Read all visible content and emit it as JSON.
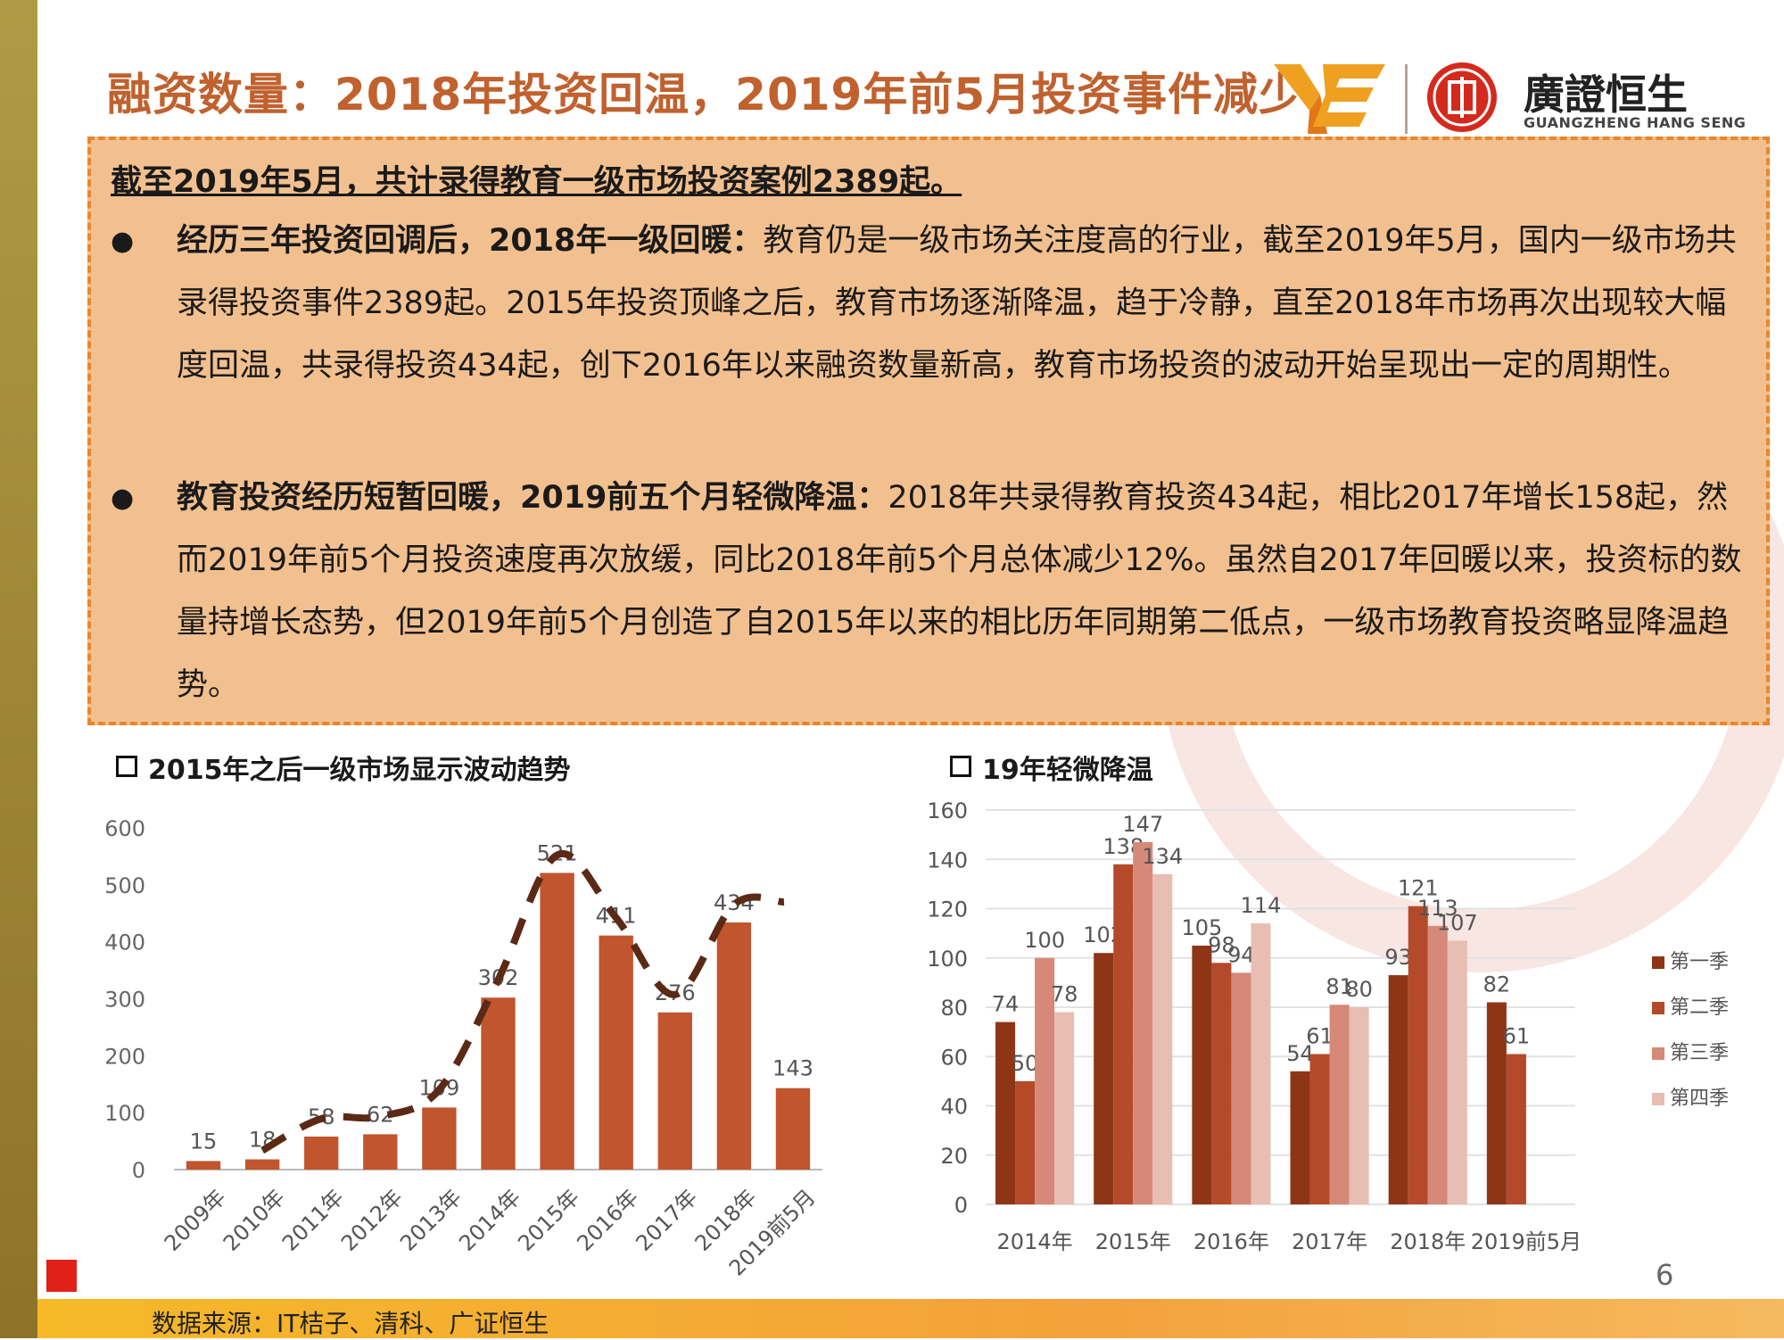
{
  "title": "融资数量：2018年投资回温，2019年前5月投资事件减少",
  "logo": {
    "cn": "廣證恒生",
    "en": "GUANGZHENG HANG SENG"
  },
  "box": {
    "headline": "截至2019年5月，共计录得教育一级市场投资案例2389起。",
    "bullets": [
      {
        "bold": "经历三年投资回调后，2018年一级回暖：",
        "text": "教育仍是一级市场关注度高的行业，截至2019年5月，国内一级市场共录得投资事件2389起。2015年投资顶峰之后，教育市场逐渐降温，趋于冷静，直至2018年市场再次出现较大幅度回温，共录得投资434起，创下2016年以来融资数量新高，教育市场投资的波动开始呈现出一定的周期性。"
      },
      {
        "bold": "教育投资经历短暂回暖，2019前五个月轻微降温：",
        "text": "2018年共录得教育投资434起，相比2017年增长158起，然而2019年前5个月投资速度再次放缓，同比2018年前5个月总体减少12%。虽然自2017年回暖以来，投资标的数量持增长态势，但2019年前5个月创造了自2015年以来的相比历年同期第二低点，一级市场教育投资略显降温趋势。"
      }
    ]
  },
  "chart_data": [
    {
      "type": "bar",
      "title": "2015年之后一级市场显示波动趋势",
      "categories": [
        "2009年",
        "2010年",
        "2011年",
        "2012年",
        "2013年",
        "2014年",
        "2015年",
        "2016年",
        "2017年",
        "2018年",
        "2019前5月"
      ],
      "values": [
        15,
        18,
        58,
        62,
        109,
        302,
        521,
        411,
        276,
        434,
        143
      ],
      "ylim": [
        0,
        600
      ],
      "yticks": [
        0,
        100,
        200,
        300,
        400,
        500,
        600
      ],
      "data_labels": true,
      "grid": false,
      "bar_color": "#c0552e",
      "trend_line": "dashed"
    },
    {
      "type": "bar",
      "title": "19年轻微降温",
      "categories": [
        "2014年",
        "2015年",
        "2016年",
        "2017年",
        "2018年",
        "2019前5月"
      ],
      "series": [
        {
          "name": "第一季",
          "values": [
            74,
            102,
            105,
            54,
            93,
            82
          ],
          "color": "#8e3516"
        },
        {
          "name": "第二季",
          "values": [
            50,
            138,
            98,
            61,
            121,
            61
          ],
          "color": "#b44a2a"
        },
        {
          "name": "第三季",
          "values": [
            100,
            147,
            94,
            81,
            113,
            null
          ],
          "color": "#d68978"
        },
        {
          "name": "第四季",
          "values": [
            78,
            134,
            114,
            80,
            107,
            null
          ],
          "color": "#e8beb2"
        }
      ],
      "ylim": [
        0,
        160
      ],
      "yticks": [
        0,
        20,
        40,
        60,
        80,
        100,
        120,
        140,
        160
      ],
      "data_labels": true,
      "grid": true,
      "legend": "right"
    }
  ],
  "page_number": "6",
  "footer": "数据来源：IT桔子、清科、广证恒生"
}
